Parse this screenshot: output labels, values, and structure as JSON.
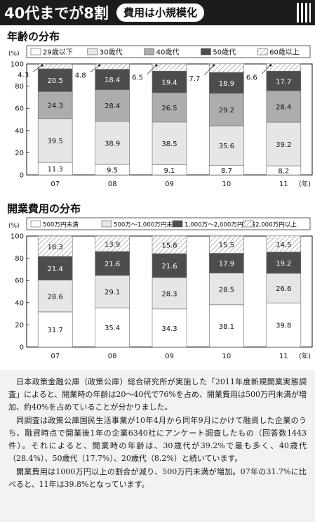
{
  "header": {
    "title": "40代までが8割",
    "subtitle": "費用は小規模化"
  },
  "chart_data": [
    {
      "type": "bar",
      "stacked": true,
      "title": "年齢の分布",
      "y_unit": "(%)",
      "x_unit": "(年)",
      "ylim": [
        0,
        100
      ],
      "yticks": [
        "0",
        "20",
        "40",
        "60",
        "80",
        "100"
      ],
      "categories": [
        "07",
        "08",
        "09",
        "10",
        "11"
      ],
      "series": [
        {
          "name": "29歳以下",
          "values": [
            11.3,
            9.5,
            9.1,
            8.7,
            8.2
          ],
          "labels": [
            "11.3",
            "9.5",
            "9.1",
            "8.7",
            "8.2"
          ],
          "color": "#ffffff",
          "label_color": "#111111"
        },
        {
          "name": "30歳代",
          "values": [
            39.5,
            38.9,
            38.5,
            35.6,
            39.2
          ],
          "labels": [
            "39.5",
            "38.9",
            "38.5",
            "35.6",
            "39.2"
          ],
          "color": "#e6e6e6",
          "label_color": "#111111"
        },
        {
          "name": "40歳代",
          "values": [
            24.3,
            28.4,
            26.5,
            29.2,
            28.4
          ],
          "labels": [
            "24.3",
            "28.4",
            "26.5",
            "29.2",
            "28.4"
          ],
          "color": "#adadad",
          "label_color": "#111111"
        },
        {
          "name": "50歳代",
          "values": [
            20.5,
            18.4,
            19.4,
            18.9,
            17.7
          ],
          "labels": [
            "20.5",
            "18.4",
            "19.4",
            "18.9",
            "17.7"
          ],
          "color": "#4d4d4d",
          "label_color": "#ffffff"
        },
        {
          "name": "60歳以上",
          "values": [
            4.3,
            4.8,
            6.5,
            7.7,
            6.6
          ],
          "labels": [
            "4.3",
            "4.8",
            "6.5",
            "7.7",
            "6.6"
          ],
          "color": "hatch",
          "label_color": "#111111",
          "label_outside": true
        }
      ]
    },
    {
      "type": "bar",
      "stacked": true,
      "title": "開業費用の分布",
      "y_unit": "(%)",
      "x_unit": "(年)",
      "ylim": [
        0,
        100
      ],
      "yticks": [
        "0",
        "20",
        "40",
        "60",
        "80",
        "100"
      ],
      "categories": [
        "07",
        "08",
        "09",
        "10",
        "11"
      ],
      "series": [
        {
          "name": "500万円未満",
          "values": [
            31.7,
            35.4,
            34.3,
            38.1,
            39.8
          ],
          "labels": [
            "31.7",
            "35.4",
            "34.3",
            "38.1",
            "39.8"
          ],
          "color": "#ffffff",
          "label_color": "#111111"
        },
        {
          "name": "500万～1,000万円未満",
          "values": [
            28.6,
            29.1,
            28.3,
            28.5,
            26.6
          ],
          "labels": [
            "28.6",
            "29.1",
            "28.3",
            "28.5",
            "26.6"
          ],
          "color": "#e6e6e6",
          "label_color": "#111111"
        },
        {
          "name": "1,000万～2,000万円未満",
          "values": [
            21.4,
            21.6,
            21.6,
            17.9,
            19.2
          ],
          "labels": [
            "21.4",
            "21.6",
            "21.6",
            "17.9",
            "19.2"
          ],
          "color": "#4d4d4d",
          "label_color": "#ffffff"
        },
        {
          "name": "2,000万円以上",
          "values": [
            18.3,
            13.9,
            15.8,
            15.5,
            14.5
          ],
          "labels": [
            "18.3",
            "13.9",
            "15.8",
            "15.5",
            "14.5"
          ],
          "color": "hatch",
          "label_color": "#111111"
        }
      ]
    }
  ],
  "article": {
    "paragraphs": [
      "日本政策金融公庫（政策公庫）総合研究所が実施した「2011年度新規開業実態調査」によると、開業時の年齢は20～40代で76%を占め、開業費用は500万円未満が増加、約40%を占めていることが分かりました。",
      "同調査は政策公庫国民生活事業が10年4月から同年9月にかけて融資した企業のうち、融資時点で開業後1年の企業6340社にアンケート調査したもの（回答数1443件）。それによると、開業時の年齢は、30歳代が39.2%で最も多く、40歳代（28.4%）、50歳代（17.7%）、20歳代（8.2%）と続いています。",
      "開業費用は1000万円以上の割合が減り、500万円未満が増加。07年の31.7%に比べると、11年は39.8%となっています。"
    ]
  }
}
